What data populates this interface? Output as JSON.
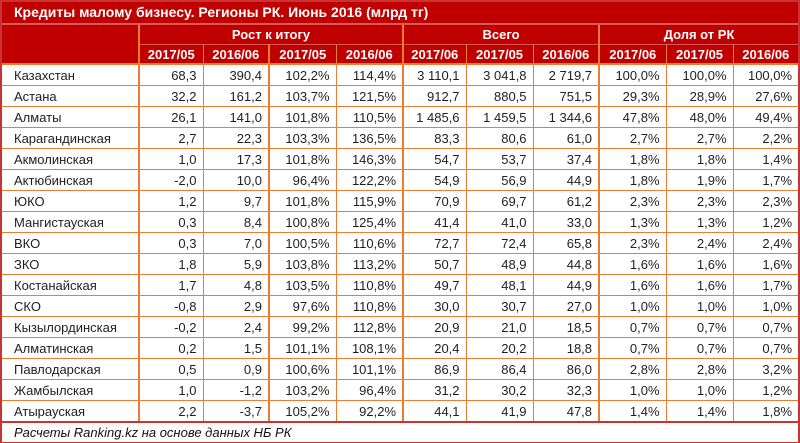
{
  "title": "Кредиты малому бизнесу. Регионы РК. Июнь 2016 (млрд тг)",
  "footer": "Расчеты Ranking.kz на основе данных НБ РК",
  "colors": {
    "header_bg": "#c00000",
    "border_orange": "#ed7d31",
    "border_red": "#ca3334",
    "text": "#1f1f1f"
  },
  "table": {
    "groups": [
      {
        "label": "Рост к итогу",
        "cols": [
          "2017/05",
          "2016/06",
          "2017/05",
          "2016/06"
        ]
      },
      {
        "label": "Всего",
        "cols": [
          "2017/06",
          "2017/05",
          "2016/06"
        ]
      },
      {
        "label": "Доля от РК",
        "cols": [
          "2017/06",
          "2017/05",
          "2016/06"
        ]
      }
    ],
    "rows": [
      {
        "region": "Казахстан",
        "values": [
          "68,3",
          "390,4",
          "102,2%",
          "114,4%",
          "3 110,1",
          "3 041,8",
          "2 719,7",
          "100,0%",
          "100,0%",
          "100,0%"
        ]
      },
      {
        "region": "Астана",
        "values": [
          "32,2",
          "161,2",
          "103,7%",
          "121,5%",
          "912,7",
          "880,5",
          "751,5",
          "29,3%",
          "28,9%",
          "27,6%"
        ]
      },
      {
        "region": "Алматы",
        "values": [
          "26,1",
          "141,0",
          "101,8%",
          "110,5%",
          "1 485,6",
          "1 459,5",
          "1 344,6",
          "47,8%",
          "48,0%",
          "49,4%"
        ]
      },
      {
        "region": "Карагандинская",
        "values": [
          "2,7",
          "22,3",
          "103,3%",
          "136,5%",
          "83,3",
          "80,6",
          "61,0",
          "2,7%",
          "2,7%",
          "2,2%"
        ]
      },
      {
        "region": "Акмолинская",
        "values": [
          "1,0",
          "17,3",
          "101,8%",
          "146,3%",
          "54,7",
          "53,7",
          "37,4",
          "1,8%",
          "1,8%",
          "1,4%"
        ]
      },
      {
        "region": "Актюбинская",
        "values": [
          "-2,0",
          "10,0",
          "96,4%",
          "122,2%",
          "54,9",
          "56,9",
          "44,9",
          "1,8%",
          "1,9%",
          "1,7%"
        ]
      },
      {
        "region": "ЮКО",
        "values": [
          "1,2",
          "9,7",
          "101,8%",
          "115,9%",
          "70,9",
          "69,7",
          "61,2",
          "2,3%",
          "2,3%",
          "2,3%"
        ]
      },
      {
        "region": "Мангистауская",
        "values": [
          "0,3",
          "8,4",
          "100,8%",
          "125,4%",
          "41,4",
          "41,0",
          "33,0",
          "1,3%",
          "1,3%",
          "1,2%"
        ]
      },
      {
        "region": "ВКО",
        "values": [
          "0,3",
          "7,0",
          "100,5%",
          "110,6%",
          "72,7",
          "72,4",
          "65,8",
          "2,3%",
          "2,4%",
          "2,4%"
        ]
      },
      {
        "region": "ЗКО",
        "values": [
          "1,8",
          "5,9",
          "103,8%",
          "113,2%",
          "50,7",
          "48,9",
          "44,8",
          "1,6%",
          "1,6%",
          "1,6%"
        ]
      },
      {
        "region": "Костанайская",
        "values": [
          "1,7",
          "4,8",
          "103,5%",
          "110,8%",
          "49,7",
          "48,1",
          "44,9",
          "1,6%",
          "1,6%",
          "1,7%"
        ]
      },
      {
        "region": "СКО",
        "values": [
          "-0,8",
          "2,9",
          "97,6%",
          "110,8%",
          "30,0",
          "30,7",
          "27,0",
          "1,0%",
          "1,0%",
          "1,0%"
        ]
      },
      {
        "region": "Кызылординская",
        "values": [
          "-0,2",
          "2,4",
          "99,2%",
          "112,8%",
          "20,9",
          "21,0",
          "18,5",
          "0,7%",
          "0,7%",
          "0,7%"
        ]
      },
      {
        "region": "Алматинская",
        "values": [
          "0,2",
          "1,5",
          "101,1%",
          "108,1%",
          "20,4",
          "20,2",
          "18,8",
          "0,7%",
          "0,7%",
          "0,7%"
        ]
      },
      {
        "region": "Павлодарская",
        "values": [
          "0,5",
          "0,9",
          "100,6%",
          "101,1%",
          "86,9",
          "86,4",
          "86,0",
          "2,8%",
          "2,8%",
          "3,2%"
        ]
      },
      {
        "region": "Жамбылская",
        "values": [
          "1,0",
          "-1,2",
          "103,2%",
          "96,4%",
          "31,2",
          "30,2",
          "32,3",
          "1,0%",
          "1,0%",
          "1,2%"
        ]
      },
      {
        "region": "Атырауская",
        "values": [
          "2,2",
          "-3,7",
          "105,2%",
          "92,2%",
          "44,1",
          "41,9",
          "47,8",
          "1,4%",
          "1,4%",
          "1,8%"
        ]
      }
    ]
  }
}
